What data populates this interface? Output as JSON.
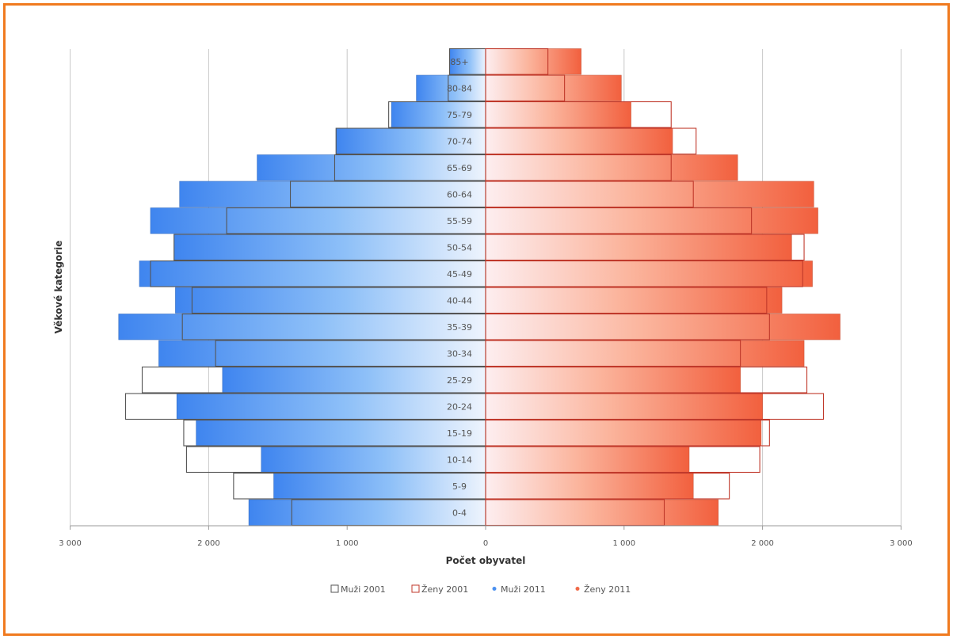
{
  "chart_data": {
    "type": "bar",
    "orientation": "horizontal",
    "layout": "population pyramid",
    "categories": [
      "0-4",
      "5-9",
      "10-14",
      "15-19",
      "20-24",
      "25-29",
      "30-34",
      "35-39",
      "40-44",
      "45-49",
      "50-54",
      "55-59",
      "60-64",
      "65-69",
      "70-74",
      "75-79",
      "80-84",
      "85+"
    ],
    "series": [
      {
        "name": "Muži 2001",
        "side": "left",
        "style": "outline",
        "color": "#555555",
        "values": [
          1400,
          1820,
          2160,
          2180,
          2600,
          2480,
          1950,
          2190,
          2120,
          2420,
          2250,
          1870,
          1410,
          1090,
          1080,
          700,
          270,
          260
        ]
      },
      {
        "name": "Ženy 2001",
        "side": "right",
        "style": "outline",
        "color": "#c0392b",
        "values": [
          1290,
          1760,
          1980,
          2050,
          2440,
          2320,
          1840,
          2050,
          2030,
          2290,
          2300,
          1920,
          1500,
          1340,
          1520,
          1340,
          570,
          450
        ]
      },
      {
        "name": "Muži 2011",
        "side": "left",
        "style": "fill",
        "color": "#4a90f0",
        "values": [
          1710,
          1530,
          1620,
          2090,
          2230,
          1900,
          2360,
          2650,
          2240,
          2500,
          2250,
          2420,
          2210,
          1650,
          1080,
          680,
          500,
          260
        ]
      },
      {
        "name": "Ženy 2011",
        "side": "right",
        "style": "fill",
        "color": "#f06a48",
        "values": [
          1680,
          1500,
          1470,
          1990,
          2000,
          1840,
          2300,
          2560,
          2140,
          2360,
          2210,
          2400,
          2370,
          1820,
          1350,
          1050,
          980,
          690
        ]
      }
    ],
    "xlabel": "Počet obyvatel",
    "ylabel": "Věkové kategorie",
    "xlim": [
      -3000,
      3000
    ],
    "xticks": [
      -3000,
      -2000,
      -1000,
      0,
      1000,
      2000,
      3000
    ],
    "xtick_labels": [
      "3 000",
      "2 000",
      "1 000",
      "0",
      "1 000",
      "2 000",
      "3 000"
    ],
    "grid": "vertical",
    "legend": "bottom"
  }
}
